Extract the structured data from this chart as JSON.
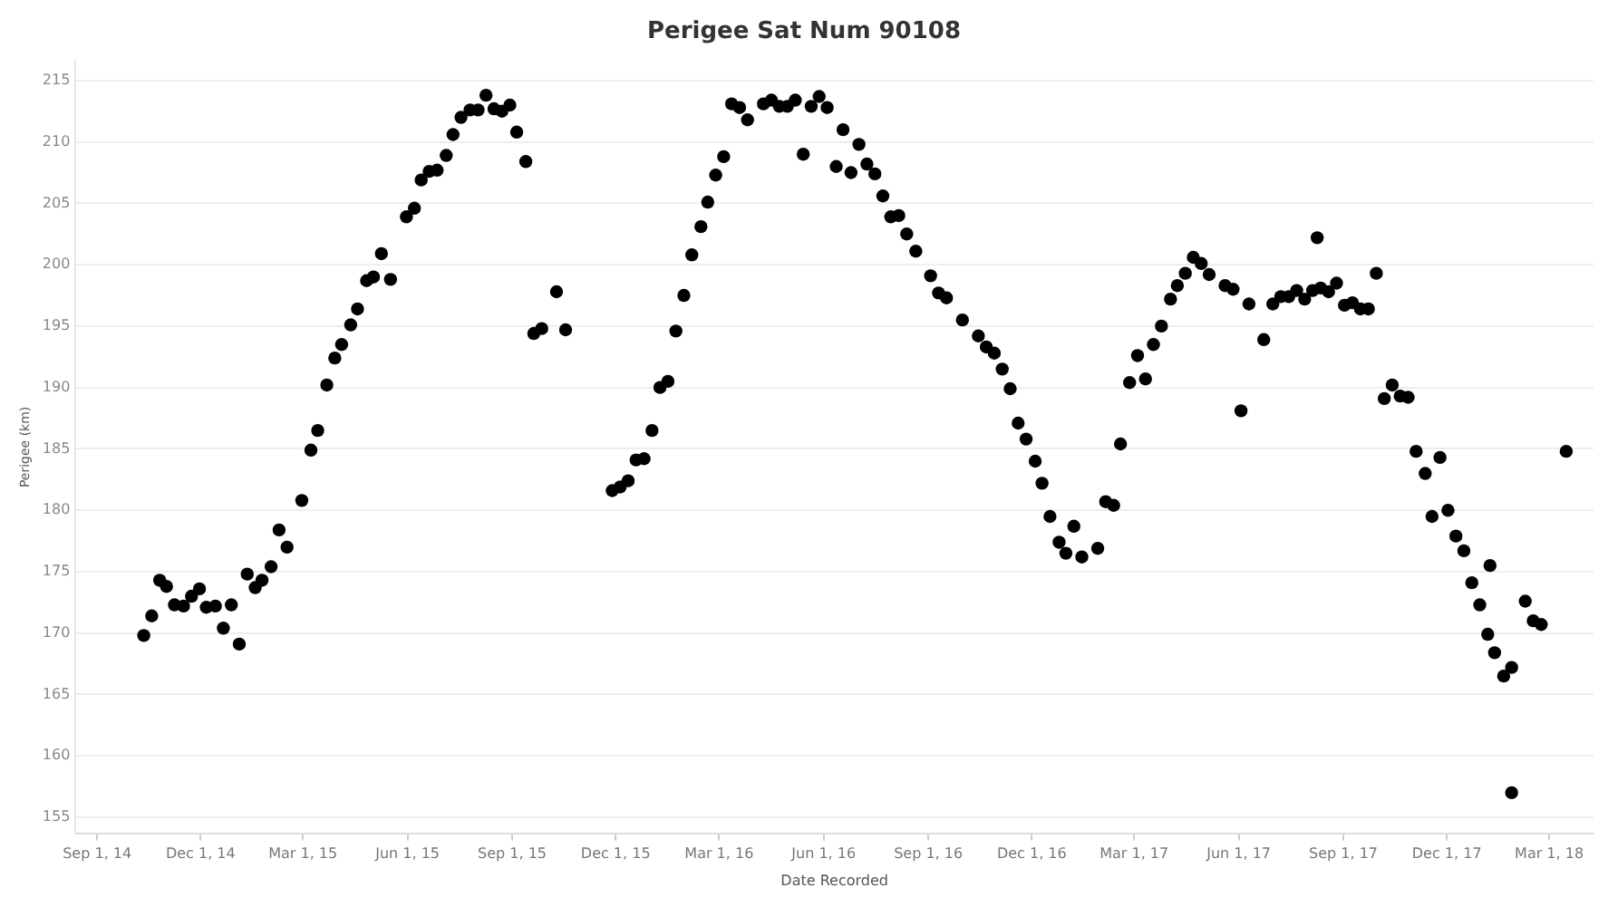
{
  "chart_data": {
    "type": "scatter",
    "title": "Perigee Sat Num 90108",
    "xlabel": "Date Recorded",
    "ylabel": "Perigee (km)",
    "x": [
      "2014-10-12",
      "2014-10-19",
      "2014-10-26",
      "2014-11-01",
      "2014-11-08",
      "2014-11-16",
      "2014-11-23",
      "2014-11-30",
      "2014-12-06",
      "2014-12-14",
      "2014-12-21",
      "2014-12-28",
      "2015-01-04",
      "2015-01-11",
      "2015-01-18",
      "2015-01-24",
      "2015-02-01",
      "2015-02-08",
      "2015-02-15",
      "2015-02-28",
      "2015-03-08",
      "2015-03-14",
      "2015-03-22",
      "2015-03-29",
      "2015-04-04",
      "2015-04-12",
      "2015-04-18",
      "2015-04-26",
      "2015-05-02",
      "2015-05-09",
      "2015-05-17",
      "2015-05-31",
      "2015-06-07",
      "2015-06-13",
      "2015-06-20",
      "2015-06-27",
      "2015-07-05",
      "2015-07-11",
      "2015-07-18",
      "2015-07-26",
      "2015-08-02",
      "2015-08-09",
      "2015-08-16",
      "2015-08-23",
      "2015-08-30",
      "2015-09-05",
      "2015-09-13",
      "2015-09-20",
      "2015-09-27",
      "2015-10-10",
      "2015-10-18",
      "2015-11-28",
      "2015-12-05",
      "2015-12-12",
      "2015-12-19",
      "2015-12-26",
      "2016-01-02",
      "2016-01-09",
      "2016-01-16",
      "2016-01-23",
      "2016-01-30",
      "2016-02-06",
      "2016-02-14",
      "2016-02-20",
      "2016-02-27",
      "2016-03-05",
      "2016-03-12",
      "2016-03-19",
      "2016-03-26",
      "2016-04-09",
      "2016-04-16",
      "2016-04-23",
      "2016-04-30",
      "2016-05-07",
      "2016-05-14",
      "2016-05-21",
      "2016-05-28",
      "2016-06-04",
      "2016-06-12",
      "2016-06-18",
      "2016-06-25",
      "2016-07-02",
      "2016-07-09",
      "2016-07-16",
      "2016-07-23",
      "2016-07-30",
      "2016-08-06",
      "2016-08-13",
      "2016-08-21",
      "2016-09-03",
      "2016-09-10",
      "2016-09-17",
      "2016-10-01",
      "2016-10-15",
      "2016-10-22",
      "2016-10-29",
      "2016-11-05",
      "2016-11-12",
      "2016-11-19",
      "2016-11-26",
      "2016-12-04",
      "2016-12-10",
      "2016-12-17",
      "2016-12-25",
      "2016-12-31",
      "2017-01-07",
      "2017-01-14",
      "2017-01-28",
      "2017-02-04",
      "2017-02-11",
      "2017-02-17",
      "2017-02-25",
      "2017-03-04",
      "2017-03-11",
      "2017-03-18",
      "2017-03-25",
      "2017-04-02",
      "2017-04-08",
      "2017-04-15",
      "2017-04-22",
      "2017-04-29",
      "2017-05-06",
      "2017-05-20",
      "2017-05-27",
      "2017-06-03",
      "2017-06-10",
      "2017-06-23",
      "2017-07-01",
      "2017-07-08",
      "2017-07-15",
      "2017-07-22",
      "2017-07-29",
      "2017-08-05",
      "2017-08-09",
      "2017-08-12",
      "2017-08-19",
      "2017-08-26",
      "2017-09-02",
      "2017-09-09",
      "2017-09-16",
      "2017-09-23",
      "2017-09-30",
      "2017-10-07",
      "2017-10-14",
      "2017-10-21",
      "2017-10-28",
      "2017-11-04",
      "2017-11-12",
      "2017-11-18",
      "2017-11-25",
      "2017-12-02",
      "2017-12-09",
      "2017-12-16",
      "2017-12-23",
      "2017-12-30",
      "2018-01-06",
      "2018-01-08",
      "2018-01-12",
      "2018-01-20",
      "2018-01-27",
      "2018-01-27",
      "2018-02-08",
      "2018-02-15",
      "2018-02-22",
      "2018-03-16"
    ],
    "values": [
      169.8,
      171.4,
      174.3,
      173.8,
      172.3,
      172.2,
      173.0,
      173.6,
      172.1,
      172.2,
      170.4,
      172.3,
      169.1,
      174.8,
      173.7,
      174.3,
      175.4,
      178.4,
      177.0,
      180.8,
      184.9,
      186.5,
      190.2,
      192.4,
      193.5,
      195.1,
      196.4,
      198.7,
      199.0,
      200.9,
      198.8,
      203.9,
      204.6,
      206.9,
      207.6,
      207.7,
      208.9,
      210.6,
      212.0,
      212.6,
      212.6,
      213.8,
      212.7,
      212.5,
      213.0,
      210.8,
      208.4,
      194.4,
      194.8,
      197.8,
      194.7,
      181.6,
      181.9,
      182.4,
      184.1,
      184.2,
      186.5,
      190.0,
      190.5,
      194.6,
      197.5,
      200.8,
      203.1,
      205.1,
      207.3,
      208.8,
      213.1,
      212.8,
      211.8,
      213.1,
      213.4,
      212.9,
      212.9,
      213.4,
      209.0,
      212.9,
      213.7,
      212.8,
      208.0,
      211.0,
      207.5,
      209.8,
      208.2,
      207.4,
      205.6,
      203.9,
      204.0,
      202.5,
      201.1,
      199.1,
      197.7,
      197.3,
      195.5,
      194.2,
      193.3,
      192.8,
      191.5,
      189.9,
      187.1,
      185.8,
      184.0,
      182.2,
      179.5,
      177.4,
      176.5,
      178.7,
      176.2,
      176.9,
      180.7,
      180.4,
      185.4,
      190.4,
      192.6,
      190.7,
      193.5,
      195.0,
      197.2,
      198.3,
      199.3,
      200.6,
      200.1,
      199.2,
      198.3,
      198.0,
      188.1,
      196.8,
      193.9,
      196.8,
      197.4,
      197.4,
      197.9,
      197.2,
      197.9,
      202.2,
      198.1,
      197.8,
      198.5,
      196.7,
      196.9,
      196.4,
      196.4,
      199.3,
      189.1,
      190.2,
      189.3,
      189.2,
      184.8,
      183.0,
      179.5,
      184.3,
      180.0,
      177.9,
      176.7,
      174.1,
      172.3,
      169.9,
      175.5,
      168.4,
      166.5,
      167.2,
      157.0,
      172.6,
      171.0,
      170.7,
      184.8
    ],
    "color": "#000000",
    "marker": "circle",
    "xlim": [
      "2014-08-13",
      "2018-04-09"
    ],
    "xticks": [
      {
        "value": "2014-09-01",
        "label": "Sep 1, 14"
      },
      {
        "value": "2014-12-01",
        "label": "Dec 1, 14"
      },
      {
        "value": "2015-03-01",
        "label": "Mar 1, 15"
      },
      {
        "value": "2015-06-01",
        "label": "Jun 1, 15"
      },
      {
        "value": "2015-09-01",
        "label": "Sep 1, 15"
      },
      {
        "value": "2015-12-01",
        "label": "Dec 1, 15"
      },
      {
        "value": "2016-03-01",
        "label": "Mar 1, 16"
      },
      {
        "value": "2016-06-01",
        "label": "Jun 1, 16"
      },
      {
        "value": "2016-09-01",
        "label": "Sep 1, 16"
      },
      {
        "value": "2016-12-01",
        "label": "Dec 1, 16"
      },
      {
        "value": "2017-03-01",
        "label": "Mar 1, 17"
      },
      {
        "value": "2017-06-01",
        "label": "Jun 1, 17"
      },
      {
        "value": "2017-09-01",
        "label": "Sep 1, 17"
      },
      {
        "value": "2017-12-01",
        "label": "Dec 1, 17"
      },
      {
        "value": "2018-03-01",
        "label": "Mar 1, 18"
      }
    ],
    "ylim": [
      153.7,
      216.6
    ],
    "yticks": [
      155,
      160,
      165,
      170,
      175,
      180,
      185,
      190,
      195,
      200,
      205,
      210,
      215
    ],
    "grid": "y"
  }
}
